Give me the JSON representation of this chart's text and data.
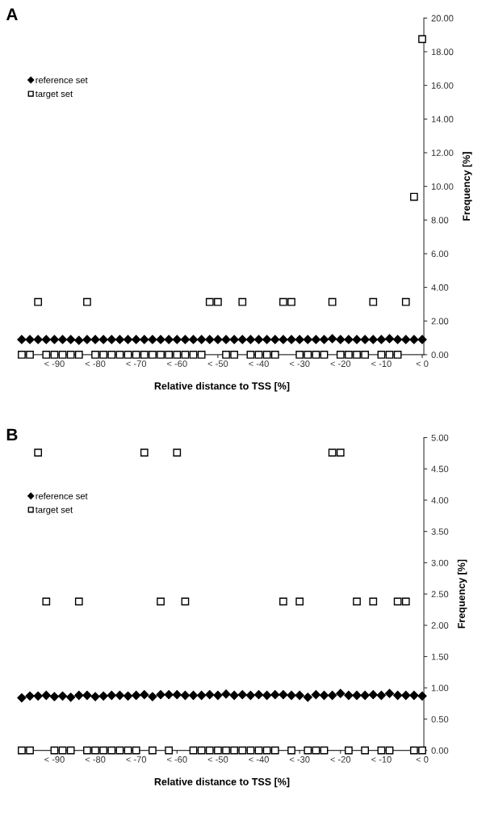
{
  "chart_data": [
    {
      "type": "scatter",
      "title": "A",
      "xlabel": "Relative distance to TSS [%]",
      "ylabel": "Frequency [%]",
      "categories": [
        null,
        null,
        null,
        null,
        "< -90",
        null,
        null,
        null,
        null,
        "< -80",
        null,
        null,
        null,
        null,
        "< -70",
        null,
        null,
        null,
        null,
        "< -60",
        null,
        null,
        null,
        null,
        "< -50",
        null,
        null,
        null,
        null,
        "< -40",
        null,
        null,
        null,
        null,
        "< -30",
        null,
        null,
        null,
        null,
        "< -20",
        null,
        null,
        null,
        null,
        "< -10",
        null,
        null,
        null,
        null,
        "< 0"
      ],
      "series": [
        {
          "name": "reference set",
          "color": "#000000",
          "marker": "diamond",
          "values": [
            0.9,
            0.9,
            0.9,
            0.9,
            0.9,
            0.9,
            0.9,
            0.85,
            0.9,
            0.9,
            0.9,
            0.9,
            0.9,
            0.9,
            0.9,
            0.9,
            0.9,
            0.9,
            0.9,
            0.9,
            0.9,
            0.9,
            0.9,
            0.9,
            0.9,
            0.9,
            0.9,
            0.9,
            0.9,
            0.9,
            0.9,
            0.9,
            0.9,
            0.9,
            0.9,
            0.9,
            0.9,
            0.9,
            0.95,
            0.9,
            0.9,
            0.9,
            0.9,
            0.9,
            0.9,
            0.95,
            0.9,
            0.9,
            0.9,
            0.9
          ]
        },
        {
          "name": "target set",
          "color": "#000000",
          "marker": "square",
          "values": [
            0,
            0,
            3.13,
            0,
            0,
            0,
            0,
            0,
            3.13,
            0,
            0,
            0,
            0,
            0,
            0,
            0,
            0,
            0,
            0,
            0,
            0,
            0,
            0,
            3.13,
            3.13,
            0,
            0,
            3.13,
            0,
            0,
            0,
            0,
            3.13,
            3.13,
            0,
            0,
            0,
            0,
            3.13,
            0,
            0,
            0,
            0,
            3.13,
            0,
            0,
            0,
            3.13,
            9.38,
            18.75
          ]
        }
      ],
      "ylim": [
        0,
        20
      ],
      "yticks": [
        {
          "value": 0,
          "label": "0.00"
        },
        {
          "value": 2,
          "label": "2.00"
        },
        {
          "value": 4,
          "label": "4.00"
        },
        {
          "value": 6,
          "label": "6.00"
        },
        {
          "value": 8,
          "label": "8.00"
        },
        {
          "value": 10,
          "label": "10.00"
        },
        {
          "value": 12,
          "label": "12.00"
        },
        {
          "value": 14,
          "label": "14.00"
        },
        {
          "value": 16,
          "label": "16.00"
        },
        {
          "value": 18,
          "label": "18.00"
        },
        {
          "value": 20,
          "label": "20.00"
        }
      ],
      "legend": "top left"
    },
    {
      "type": "scatter",
      "title": "B",
      "xlabel": "Relative distance to TSS [%]",
      "ylabel": "Frequency [%]",
      "categories": [
        null,
        null,
        null,
        null,
        "< -90",
        null,
        null,
        null,
        null,
        "< -80",
        null,
        null,
        null,
        null,
        "< -70",
        null,
        null,
        null,
        null,
        "< -60",
        null,
        null,
        null,
        null,
        "< -50",
        null,
        null,
        null,
        null,
        "< -40",
        null,
        null,
        null,
        null,
        "< -30",
        null,
        null,
        null,
        null,
        "< -20",
        null,
        null,
        null,
        null,
        "< -10",
        null,
        null,
        null,
        null,
        "< 0"
      ],
      "series": [
        {
          "name": "reference set",
          "color": "#000000",
          "marker": "diamond",
          "values": [
            0.84,
            0.87,
            0.87,
            0.88,
            0.86,
            0.87,
            0.85,
            0.88,
            0.88,
            0.86,
            0.87,
            0.88,
            0.88,
            0.87,
            0.88,
            0.89,
            0.86,
            0.89,
            0.89,
            0.89,
            0.88,
            0.88,
            0.88,
            0.89,
            0.88,
            0.9,
            0.88,
            0.89,
            0.88,
            0.89,
            0.88,
            0.89,
            0.89,
            0.88,
            0.88,
            0.85,
            0.89,
            0.88,
            0.88,
            0.91,
            0.88,
            0.88,
            0.88,
            0.89,
            0.88,
            0.91,
            0.88,
            0.88,
            0.88,
            0.87
          ]
        },
        {
          "name": "target set",
          "color": "#000000",
          "marker": "square",
          "values": [
            0,
            0,
            4.76,
            2.38,
            0,
            0,
            0,
            2.38,
            0,
            0,
            0,
            0,
            0,
            0,
            0,
            4.76,
            0,
            2.38,
            0,
            4.76,
            2.38,
            0,
            0,
            0,
            0,
            0,
            0,
            0,
            0,
            0,
            0,
            0,
            2.38,
            0,
            2.38,
            0,
            0,
            0,
            4.76,
            4.76,
            0,
            2.38,
            0,
            2.38,
            0,
            0,
            2.38,
            2.38,
            0,
            0
          ]
        }
      ],
      "ylim": [
        0,
        5
      ],
      "yticks": [
        {
          "value": 0,
          "label": "0.00"
        },
        {
          "value": 0.5,
          "label": "0.50"
        },
        {
          "value": 1,
          "label": "1.00"
        },
        {
          "value": 1.5,
          "label": "1.50"
        },
        {
          "value": 2,
          "label": "2.00"
        },
        {
          "value": 2.5,
          "label": "2.50"
        },
        {
          "value": 3,
          "label": "3.00"
        },
        {
          "value": 3.5,
          "label": "3.50"
        },
        {
          "value": 4,
          "label": "4.00"
        },
        {
          "value": 4.5,
          "label": "4.50"
        },
        {
          "value": 5,
          "label": "5.00"
        }
      ],
      "legend": "top left"
    }
  ]
}
